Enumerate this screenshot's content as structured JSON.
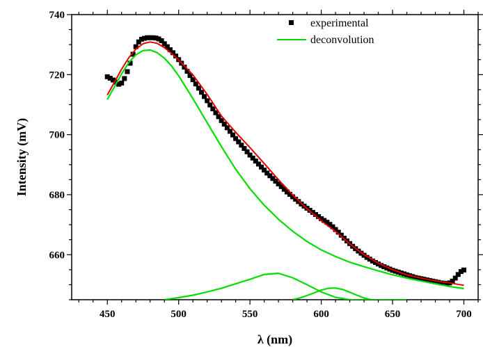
{
  "chart_data": {
    "type": "scatter",
    "xlabel": "λ (nm)",
    "ylabel": "Intensity (mV)",
    "xlim": [
      425,
      710
    ],
    "ylim": [
      645,
      740
    ],
    "x_ticks": [
      450,
      500,
      550,
      600,
      650,
      700
    ],
    "y_ticks": [
      660,
      680,
      700,
      720,
      740
    ],
    "x_minor_step": 10,
    "y_minor_step": 5,
    "grid": false,
    "legend_position": "top-right",
    "legend": [
      {
        "label": "experimental",
        "series": "experimental"
      },
      {
        "label": "deconvolution",
        "series": "deconvolution"
      }
    ],
    "colors": {
      "experimental": "#000000",
      "deconvolution": "#00dd00",
      "fit": "#e00000"
    },
    "series": [
      {
        "name": "experimental",
        "style": "square-markers",
        "x": [
          450,
          452,
          454,
          456,
          458,
          460,
          462,
          464,
          466,
          468,
          470,
          472,
          474,
          476,
          478,
          480,
          482,
          484,
          486,
          488,
          490,
          492,
          494,
          496,
          498,
          500,
          502,
          504,
          506,
          508,
          510,
          512,
          514,
          516,
          518,
          520,
          522,
          524,
          526,
          528,
          530,
          532,
          534,
          536,
          538,
          540,
          542,
          544,
          546,
          548,
          550,
          552,
          554,
          556,
          558,
          560,
          562,
          564,
          566,
          568,
          570,
          572,
          574,
          576,
          578,
          580,
          582,
          584,
          586,
          588,
          590,
          592,
          594,
          596,
          598,
          600,
          602,
          604,
          606,
          608,
          610,
          612,
          614,
          616,
          618,
          620,
          622,
          624,
          626,
          628,
          630,
          632,
          634,
          636,
          638,
          640,
          642,
          644,
          646,
          648,
          650,
          652,
          654,
          656,
          658,
          660,
          662,
          664,
          666,
          668,
          670,
          672,
          674,
          676,
          678,
          680,
          682,
          684,
          686,
          688,
          690,
          692,
          694,
          696,
          698,
          700
        ],
        "y": [
          719.3,
          718.8,
          718.2,
          717.5,
          716.8,
          717.2,
          718.7,
          721.0,
          723.8,
          726.8,
          729.3,
          730.9,
          731.8,
          732.1,
          732.3,
          732.3,
          732.3,
          732.2,
          731.9,
          731.3,
          730.3,
          729.3,
          728.3,
          727.3,
          726.2,
          725.0,
          723.8,
          722.5,
          721.1,
          719.7,
          718.3,
          716.9,
          715.5,
          714.1,
          712.7,
          711.3,
          709.9,
          708.6,
          707.3,
          706.0,
          704.7,
          703.5,
          702.3,
          701.1,
          699.9,
          698.7,
          697.6,
          696.5,
          695.4,
          694.3,
          693.2,
          692.2,
          691.2,
          690.2,
          689.2,
          688.2,
          687.2,
          686.3,
          685.4,
          684.5,
          683.6,
          682.7,
          681.8,
          680.9,
          680.1,
          679.3,
          678.5,
          677.7,
          676.9,
          676.2,
          675.5,
          674.8,
          674.1,
          673.4,
          672.7,
          672.0,
          671.4,
          670.8,
          670.1,
          669.3,
          668.4,
          667.5,
          666.5,
          665.5,
          664.6,
          663.7,
          662.8,
          662.0,
          661.2,
          660.5,
          659.8,
          659.1,
          658.5,
          657.9,
          657.4,
          656.9,
          656.4,
          656.0,
          655.6,
          655.2,
          654.8,
          654.5,
          654.2,
          653.9,
          653.6,
          653.3,
          653.0,
          652.7,
          652.4,
          652.2,
          652.0,
          651.8,
          651.6,
          651.4,
          651.2,
          651.0,
          650.8,
          650.6,
          650.5,
          650.4,
          650.6,
          651.2,
          652.2,
          653.4,
          654.4,
          654.9
        ]
      },
      {
        "name": "fit",
        "style": "line",
        "x": [
          450,
          455,
          460,
          465,
          470,
          475,
          480,
          485,
          490,
          495,
          500,
          510,
          520,
          530,
          540,
          550,
          560,
          570,
          580,
          590,
          600,
          610,
          620,
          630,
          640,
          650,
          660,
          670,
          680,
          690,
          700
        ],
        "y": [
          713.2,
          717.5,
          721.8,
          725.6,
          728.5,
          730.3,
          730.9,
          730.4,
          729.0,
          727.1,
          724.9,
          719.9,
          713.4,
          706.2,
          700.8,
          695.7,
          690.4,
          685.0,
          679.9,
          675.3,
          671.3,
          667.8,
          663.6,
          660.0,
          657.2,
          655.0,
          653.3,
          652.2,
          651.3,
          650.6,
          649.8
        ]
      },
      {
        "name": "deconvolution",
        "style": "line",
        "x": [
          450,
          455,
          460,
          465,
          470,
          475,
          480,
          485,
          490,
          495,
          500,
          510,
          520,
          530,
          540,
          550,
          560,
          570,
          580,
          590,
          600,
          610,
          620,
          630,
          640,
          650,
          660,
          670,
          680,
          690,
          700
        ],
        "y": [
          711.7,
          716.0,
          720.3,
          724.0,
          726.6,
          728.0,
          728.2,
          727.3,
          725.5,
          722.9,
          719.6,
          712.0,
          704.0,
          696.0,
          688.5,
          682.0,
          676.5,
          671.8,
          667.8,
          664.4,
          661.6,
          659.4,
          657.5,
          656.0,
          654.6,
          653.3,
          652.2,
          651.2,
          650.3,
          649.4,
          648.7
        ]
      },
      {
        "name": "deconvolution-2",
        "style": "line",
        "x": [
          490,
          500,
          510,
          520,
          530,
          540,
          550,
          560,
          570,
          580,
          590,
          600,
          610,
          620,
          630,
          640,
          650,
          660
        ],
        "y": [
          645.0,
          645.7,
          646.5,
          647.6,
          648.8,
          650.3,
          651.8,
          653.4,
          653.8,
          652.3,
          650.0,
          647.6,
          645.8,
          645.0,
          645.0,
          645.0,
          645.0,
          645.0
        ]
      },
      {
        "name": "deconvolution-3",
        "style": "line",
        "x": [
          580,
          585,
          590,
          595,
          600,
          605,
          610,
          615,
          620,
          625,
          630,
          635
        ],
        "y": [
          645.0,
          645.6,
          646.4,
          647.3,
          648.2,
          648.8,
          648.9,
          648.4,
          647.5,
          646.5,
          645.6,
          645.0
        ]
      }
    ]
  }
}
